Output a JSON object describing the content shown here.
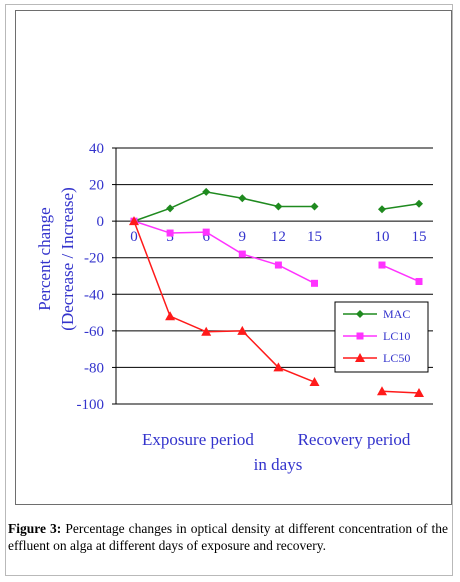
{
  "caption": {
    "label": "Figure 3:",
    "text": "Percentage changes in optical density at different concentration of the effluent on alga at different days of exposure and recovery."
  },
  "chart_data": {
    "type": "line",
    "ylabel_line1": "Percent change",
    "ylabel_line2": "(Decrease  / Increase)",
    "xlabel_line1_left": "Exposure period",
    "xlabel_line1_right": "Recovery period",
    "xlabel_line2": "in days",
    "ylim": [
      -100,
      40
    ],
    "yticks": [
      40,
      20,
      0,
      -20,
      -40,
      -60,
      -80,
      -100
    ],
    "grid": "horizontal",
    "legend_position": "right",
    "exposure_days": [
      0,
      3,
      6,
      9,
      12,
      15
    ],
    "recovery_days": [
      10,
      15
    ],
    "series": [
      {
        "name": "MAC",
        "color": "#1f8a1f",
        "marker": "diamond",
        "exposure": [
          0,
          7,
          16,
          12.5,
          8,
          8
        ],
        "recovery": [
          6.5,
          9.5
        ]
      },
      {
        "name": "LC10",
        "color": "#ff33ff",
        "marker": "square",
        "exposure": [
          0,
          -6.5,
          -6,
          -18,
          -24,
          -34
        ],
        "recovery": [
          -24,
          -33
        ]
      },
      {
        "name": "LC50",
        "color": "#ff1a1a",
        "marker": "triangle",
        "exposure": [
          0,
          -52,
          -60.5,
          -60,
          -80,
          -88
        ],
        "recovery": [
          -93,
          -94
        ]
      }
    ]
  }
}
